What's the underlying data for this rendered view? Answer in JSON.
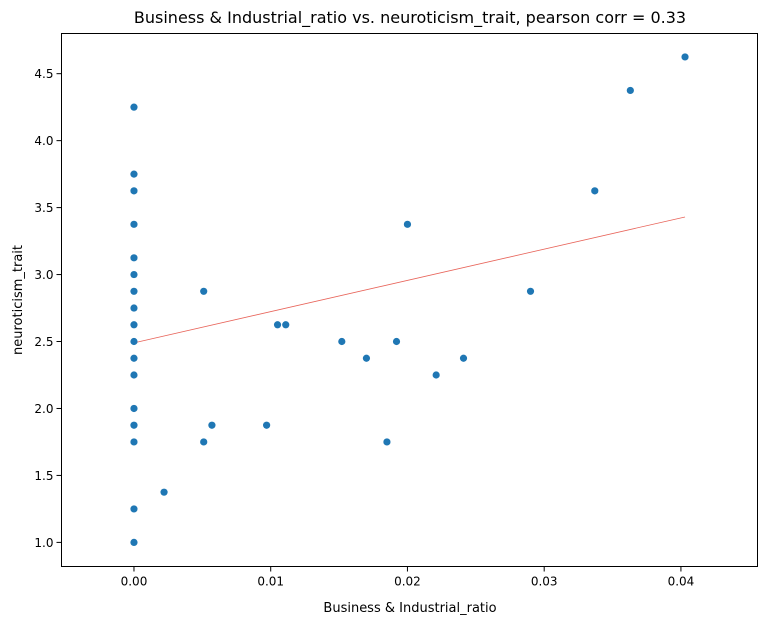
{
  "chart_data": {
    "type": "scatter",
    "title": "Business & Industrial_ratio vs. neuroticism_trait, pearson corr = 0.33",
    "xlabel": "Business & Industrial_ratio",
    "ylabel": "neuroticism_trait",
    "xlim": [
      -0.0053,
      0.0456
    ],
    "ylim": [
      0.82,
      4.8
    ],
    "x_ticks": [
      0.0,
      0.01,
      0.02,
      0.03,
      0.04
    ],
    "x_tick_labels": [
      "0.00",
      "0.01",
      "0.02",
      "0.03",
      "0.04"
    ],
    "y_ticks": [
      1.0,
      1.5,
      2.0,
      2.5,
      3.0,
      3.5,
      4.0,
      4.5
    ],
    "y_tick_labels": [
      "1.0",
      "1.5",
      "2.0",
      "2.5",
      "3.0",
      "3.5",
      "4.0",
      "4.5"
    ],
    "grid": false,
    "point_color": "#1f77b4",
    "line_color": "#e8645a",
    "points": [
      {
        "x": 0.0,
        "y": 4.25
      },
      {
        "x": 0.0,
        "y": 3.75
      },
      {
        "x": 0.0,
        "y": 3.625
      },
      {
        "x": 0.0,
        "y": 3.375
      },
      {
        "x": 0.0,
        "y": 3.125
      },
      {
        "x": 0.0,
        "y": 3.0
      },
      {
        "x": 0.0,
        "y": 2.875
      },
      {
        "x": 0.0,
        "y": 2.75
      },
      {
        "x": 0.0,
        "y": 2.625
      },
      {
        "x": 0.0,
        "y": 2.5
      },
      {
        "x": 0.0,
        "y": 2.375
      },
      {
        "x": 0.0,
        "y": 2.25
      },
      {
        "x": 0.0,
        "y": 2.0
      },
      {
        "x": 0.0,
        "y": 1.875
      },
      {
        "x": 0.0,
        "y": 1.75
      },
      {
        "x": 0.0,
        "y": 1.25
      },
      {
        "x": 0.0,
        "y": 1.0
      },
      {
        "x": 0.0022,
        "y": 1.375
      },
      {
        "x": 0.0051,
        "y": 2.875
      },
      {
        "x": 0.0051,
        "y": 1.75
      },
      {
        "x": 0.0057,
        "y": 1.875
      },
      {
        "x": 0.0097,
        "y": 1.875
      },
      {
        "x": 0.0105,
        "y": 2.625
      },
      {
        "x": 0.0111,
        "y": 2.625
      },
      {
        "x": 0.0152,
        "y": 2.5
      },
      {
        "x": 0.017,
        "y": 2.375
      },
      {
        "x": 0.0185,
        "y": 1.75
      },
      {
        "x": 0.0192,
        "y": 2.5
      },
      {
        "x": 0.02,
        "y": 3.375
      },
      {
        "x": 0.0221,
        "y": 2.25
      },
      {
        "x": 0.0241,
        "y": 2.375
      },
      {
        "x": 0.029,
        "y": 2.875
      },
      {
        "x": 0.0337,
        "y": 3.625
      },
      {
        "x": 0.0363,
        "y": 4.375
      },
      {
        "x": 0.0403,
        "y": 4.625
      }
    ],
    "fit_line": {
      "x": [
        0.0,
        0.0403
      ],
      "y": [
        2.49,
        3.43
      ]
    }
  }
}
